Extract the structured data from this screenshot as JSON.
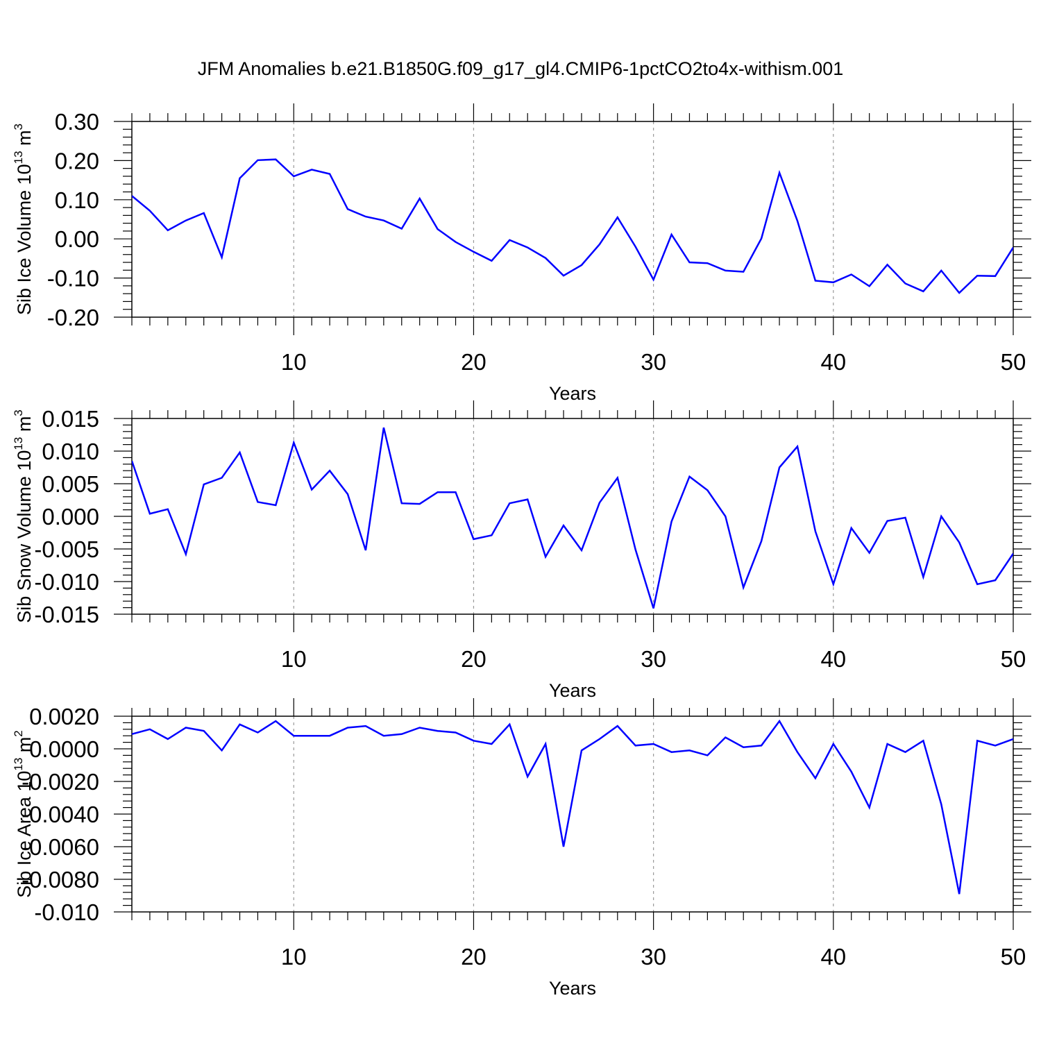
{
  "title": "JFM Anomalies b.e21.B1850G.f09_g17_gl4.CMIP6-1pctCO2to4x-withism.001",
  "colors": {
    "line": "#0000ff",
    "axis": "#000000",
    "grid": "#999999"
  },
  "chart_data": [
    {
      "type": "line",
      "name": "ice-volume",
      "xlabel": "Years",
      "ylabel_parts": {
        "main": "Sib Ice Volume 10",
        "exp": "13",
        "unit": " m",
        "unit_exp": "3"
      },
      "xlim": [
        1,
        50
      ],
      "ylim": [
        -0.2,
        0.3
      ],
      "x_ticks": [
        10,
        20,
        30,
        40,
        50
      ],
      "x_tick_labels": [
        "10",
        "20",
        "30",
        "40",
        "50"
      ],
      "y_ticks": [
        -0.2,
        -0.1,
        0.0,
        0.1,
        0.2,
        0.3
      ],
      "y_tick_labels": [
        "-0.20",
        "-0.10",
        "0.00",
        "0.10",
        "0.20",
        "0.30"
      ],
      "grid_x": true,
      "values": [
        0.11,
        0.072,
        0.022,
        0.047,
        0.066,
        -0.047,
        0.155,
        0.201,
        0.203,
        0.16,
        0.177,
        0.166,
        0.076,
        0.057,
        0.047,
        0.026,
        0.103,
        0.025,
        -0.008,
        -0.033,
        -0.056,
        -0.003,
        -0.022,
        -0.049,
        -0.094,
        -0.067,
        -0.014,
        0.055,
        -0.02,
        -0.104,
        0.011,
        -0.06,
        -0.062,
        -0.081,
        -0.084,
        0.001,
        0.169,
        0.046,
        -0.107,
        -0.111,
        -0.091,
        -0.121,
        -0.066,
        -0.114,
        -0.134,
        -0.081,
        -0.138,
        -0.094,
        -0.095,
        -0.022
      ]
    },
    {
      "type": "line",
      "name": "snow-volume",
      "xlabel": "Years",
      "ylabel_parts": {
        "main": "Sib Snow Volume 10",
        "exp": "13",
        "unit": " m",
        "unit_exp": "3"
      },
      "xlim": [
        1,
        50
      ],
      "ylim": [
        -0.015,
        0.015
      ],
      "x_ticks": [
        10,
        20,
        30,
        40,
        50
      ],
      "x_tick_labels": [
        "10",
        "20",
        "30",
        "40",
        "50"
      ],
      "y_ticks": [
        -0.015,
        -0.01,
        -0.005,
        0.0,
        0.005,
        0.01,
        0.015
      ],
      "y_tick_labels": [
        "-0.015",
        "-0.010",
        "-0.005",
        "0.000",
        "0.005",
        "0.010",
        "0.015"
      ],
      "grid_x": true,
      "values": [
        0.0085,
        0.0004,
        0.0011,
        -0.0058,
        0.0049,
        0.0059,
        0.0098,
        0.0022,
        0.0017,
        0.0113,
        0.0041,
        0.007,
        0.0034,
        -0.0052,
        0.0136,
        0.002,
        0.0019,
        0.0037,
        0.0037,
        -0.0035,
        -0.0029,
        0.002,
        0.0026,
        -0.0062,
        -0.0014,
        -0.0052,
        0.0021,
        0.0059,
        -0.0051,
        -0.0141,
        -0.0008,
        0.0061,
        0.004,
        0.0,
        -0.0109,
        -0.0038,
        0.0075,
        0.0107,
        -0.0023,
        -0.0104,
        -0.0018,
        -0.0056,
        -0.0007,
        -0.0002,
        -0.0093,
        0.0,
        -0.004,
        -0.0104,
        -0.0098,
        -0.0057
      ]
    },
    {
      "type": "line",
      "name": "ice-area",
      "xlabel": "Years",
      "ylabel_parts": {
        "main": "Sib Ice Area 10",
        "exp": "13",
        "unit": " m",
        "unit_exp": "2"
      },
      "xlim": [
        1,
        50
      ],
      "ylim": [
        -0.01,
        0.002
      ],
      "x_ticks": [
        10,
        20,
        30,
        40,
        50
      ],
      "x_tick_labels": [
        "10",
        "20",
        "30",
        "40",
        "50"
      ],
      "y_ticks": [
        -0.01,
        -0.008,
        -0.006,
        -0.004,
        -0.002,
        0.0,
        0.002
      ],
      "y_tick_labels": [
        "-0.010",
        "-0.0080",
        "-0.0060",
        "-0.0040",
        "-0.0020",
        "0.0000",
        "0.0020"
      ],
      "grid_x": true,
      "values": [
        0.0009,
        0.0012,
        0.0006,
        0.0013,
        0.0011,
        -0.0001,
        0.0015,
        0.001,
        0.0017,
        0.0008,
        0.0008,
        0.0008,
        0.0013,
        0.0014,
        0.0008,
        0.0009,
        0.0013,
        0.0011,
        0.001,
        0.0005,
        0.0003,
        0.0015,
        -0.0017,
        0.0003,
        -0.006,
        -0.0001,
        0.0006,
        0.0014,
        0.0002,
        0.0003,
        -0.0002,
        -0.0001,
        -0.0004,
        0.0007,
        0.0001,
        0.0002,
        0.0017,
        -0.0002,
        -0.0018,
        0.0003,
        -0.0014,
        -0.0036,
        0.0003,
        -0.0002,
        0.0005,
        -0.0034,
        -0.0089,
        0.0005,
        0.0002,
        0.0006
      ]
    }
  ]
}
